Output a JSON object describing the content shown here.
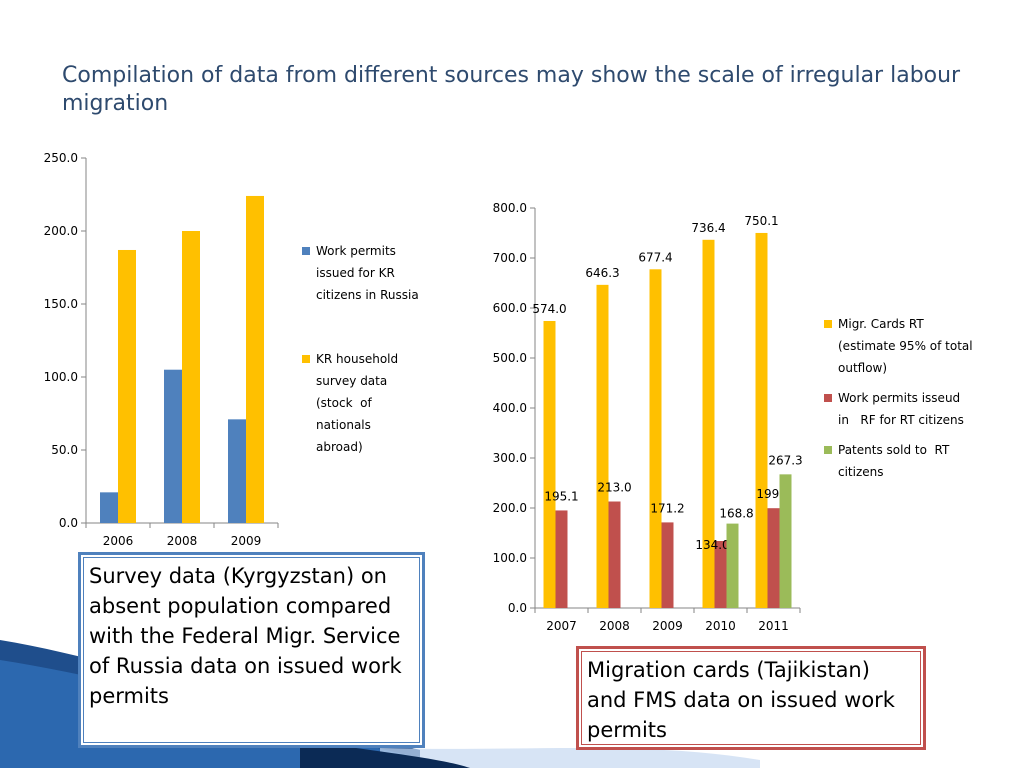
{
  "title": "Compilation of data from different sources may show the scale of irregular labour migration",
  "chart_data": [
    {
      "type": "bar",
      "categories": [
        "2006",
        "2008",
        "2009"
      ],
      "series": [
        {
          "name": "Work permits issued for KR citizens in Russia",
          "color": "#4f81bd",
          "values": [
            21,
            105,
            71
          ]
        },
        {
          "name": "KR household survey data (stock  of nationals abroad)",
          "color": "#ffc000",
          "values": [
            187,
            200,
            224
          ]
        }
      ],
      "ylim": [
        0,
        250
      ],
      "yticks": [
        "0.0",
        "50.0",
        "100.0",
        "150.0",
        "200.0",
        "250.0"
      ],
      "legend_position": "right",
      "legend_lines": [
        [
          "Work permits",
          "issued for KR",
          "citizens in Russia"
        ],
        [
          "KR household",
          "survey data",
          "(stock  of",
          "nationals",
          "abroad)"
        ]
      ],
      "data_labels": false
    },
    {
      "type": "bar",
      "categories": [
        "2007",
        "2008",
        "2009",
        "2010",
        "2011"
      ],
      "series": [
        {
          "name": "Migr. Cards RT (estimate 95% of total outflow)",
          "color": "#ffc000",
          "values": [
            574.0,
            646.3,
            677.4,
            736.4,
            750.1
          ],
          "labels": [
            "574.0",
            "646.3",
            "677.4",
            "736.4",
            "750.1"
          ]
        },
        {
          "name": "Work permits isseud in   RF for RT citizens",
          "color": "#c0504d",
          "values": [
            195.1,
            213.0,
            171.2,
            134.0,
            199.6
          ],
          "labels": [
            "195.1",
            "213.0",
            "171.2",
            "134.0",
            "199.6"
          ]
        },
        {
          "name": "Patents sold to  RT citizens",
          "color": "#9bbb59",
          "values": [
            null,
            null,
            null,
            168.8,
            267.3
          ],
          "labels": [
            "",
            "",
            "",
            "168.8",
            "267.3"
          ]
        }
      ],
      "ylim": [
        0,
        800
      ],
      "yticks": [
        "0.0",
        "100.0",
        "200.0",
        "300.0",
        "400.0",
        "500.0",
        "600.0",
        "700.0",
        "800.0"
      ],
      "legend_position": "right",
      "legend_lines": [
        [
          "Migr. Cards RT",
          "(estimate 95% of total",
          "outflow)"
        ],
        [
          "Work permits isseud",
          "in   RF for RT citizens"
        ],
        [
          "Patents sold to  RT",
          "citizens"
        ]
      ],
      "data_labels": true
    }
  ],
  "notes": {
    "left": "Survey data (Kyrgyzstan) on absent population compared with the Federal Migr. Service of Russia data on issued work permits",
    "right": "Migration cards (Tajikistan)  and FMS data on issued work permits"
  }
}
